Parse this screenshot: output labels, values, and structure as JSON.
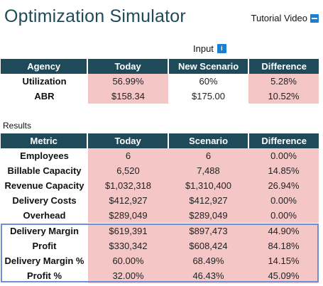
{
  "page": {
    "title": "Optimization Simulator",
    "tutorial_label": "Tutorial Video"
  },
  "input": {
    "label": "Input",
    "info_glyph": "i",
    "headers": [
      "Agency",
      "Today",
      "New Scenario",
      "Difference"
    ],
    "rows": [
      {
        "label": "Utilization",
        "today": "56.99%",
        "scenario": "60%",
        "difference": "5.28%"
      },
      {
        "label": "ABR",
        "today": "$158.34",
        "scenario": "$175.00",
        "difference": "10.52%"
      }
    ]
  },
  "results": {
    "label": "Results",
    "headers": [
      "Metric",
      "Today",
      "Scenario",
      "Difference"
    ],
    "rows": [
      {
        "label": "Employees",
        "today": "6",
        "scenario": "6",
        "difference": "0.00%"
      },
      {
        "label": "Billable Capacity",
        "today": "6,520",
        "scenario": "7,488",
        "difference": "14.85%"
      },
      {
        "label": "Revenue Capacity",
        "today": "$1,032,318",
        "scenario": "$1,310,400",
        "difference": "26.94%"
      },
      {
        "label": "Delivery Costs",
        "today": "$412,927",
        "scenario": "$412,927",
        "difference": "0.00%"
      },
      {
        "label": "Overhead",
        "today": "$289,049",
        "scenario": "$289,049",
        "difference": "0.00%"
      }
    ],
    "highlighted_rows": [
      {
        "label": "Delivery Margin",
        "today": "$619,391",
        "scenario": "$897,473",
        "difference": "44.90%"
      },
      {
        "label": "Profit",
        "today": "$330,342",
        "scenario": "$608,424",
        "difference": "84.18%"
      },
      {
        "label": "Delivery Margin %",
        "today": "60.00%",
        "scenario": "68.49%",
        "difference": "14.15%"
      },
      {
        "label": "Profit %",
        "today": "32.00%",
        "scenario": "46.43%",
        "difference": "45.09%"
      }
    ]
  },
  "colors": {
    "header_bg": "#1f4a5a",
    "title_color": "#1e4a5a",
    "cell_pink": "#f4c7c6",
    "highlight_border": "#6e8fd6",
    "icon_blue": "#1b7fd1"
  },
  "icons": {
    "tutorial": "minus-square-icon",
    "input_info": "info-icon"
  }
}
